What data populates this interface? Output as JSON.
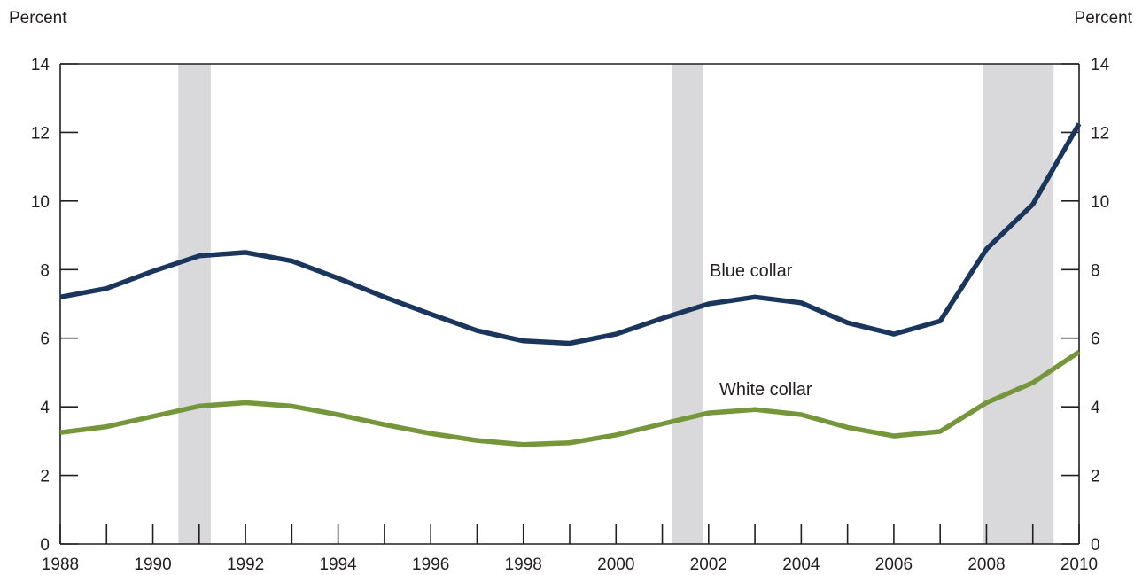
{
  "chart_data": {
    "type": "line",
    "left_axis_label": "Percent",
    "right_axis_label": "Percent",
    "x": [
      1988,
      1989,
      1990,
      1991,
      1992,
      1993,
      1994,
      1995,
      1996,
      1997,
      1998,
      1999,
      2000,
      2001,
      2002,
      2003,
      2004,
      2005,
      2006,
      2007,
      2008,
      2009,
      2010
    ],
    "x_tick_labels": [
      "1988",
      "1990",
      "1992",
      "1994",
      "1996",
      "1998",
      "2000",
      "2002",
      "2004",
      "2006",
      "2008",
      "2010"
    ],
    "xlim": [
      1988,
      2010
    ],
    "ylim": [
      0,
      14
    ],
    "y_ticks": [
      0,
      2,
      4,
      6,
      8,
      10,
      12,
      14
    ],
    "series": [
      {
        "name": "Blue collar",
        "color": "#1b365d",
        "values": [
          7.2,
          7.45,
          7.95,
          8.4,
          8.5,
          8.25,
          7.75,
          7.2,
          6.7,
          6.22,
          5.92,
          5.85,
          6.12,
          6.58,
          7.0,
          7.2,
          7.03,
          6.45,
          6.12,
          6.5,
          8.6,
          9.9,
          12.25
        ]
      },
      {
        "name": "White collar",
        "color": "#76963b",
        "values": [
          3.25,
          3.42,
          3.72,
          4.02,
          4.12,
          4.02,
          3.77,
          3.48,
          3.22,
          3.02,
          2.9,
          2.95,
          3.18,
          3.5,
          3.82,
          3.92,
          3.77,
          3.4,
          3.15,
          3.28,
          4.12,
          4.7,
          5.6
        ]
      }
    ],
    "recession_shading": [
      [
        1990.55,
        1991.25
      ],
      [
        2001.2,
        2001.88
      ],
      [
        2007.92,
        2009.45
      ]
    ],
    "shading_color": "#d9d9db",
    "grid": false
  }
}
